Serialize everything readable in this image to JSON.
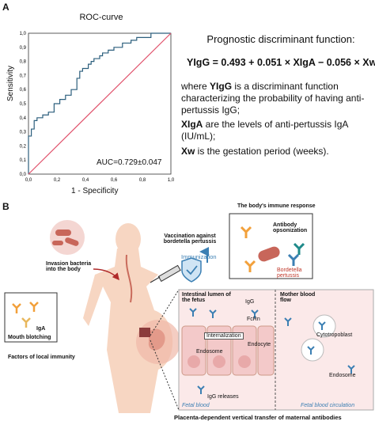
{
  "panel_a": {
    "letter": "A",
    "chart_data": {
      "type": "line",
      "title": "ROC-curve",
      "xlabel": "1 - Specificity",
      "ylabel": "Sensitivity",
      "xlim": [
        0,
        1
      ],
      "ylim": [
        0,
        1
      ],
      "xticks": [
        "0,0",
        "0,2",
        "0,4",
        "0,6",
        "0,8",
        "1,0"
      ],
      "yticks": [
        "0,0",
        "0,1",
        "0,2",
        "0,3",
        "0,4",
        "0,5",
        "0,6",
        "0,7",
        "0,8",
        "0,9",
        "1,0"
      ],
      "annotation": "AUC=0.729±0.047",
      "grid": false,
      "series": [
        {
          "role": "roc",
          "color": "#2c5f7d",
          "x": [
            0,
            0,
            0.02,
            0.02,
            0.04,
            0.04,
            0.06,
            0.06,
            0.1,
            0.1,
            0.14,
            0.14,
            0.18,
            0.18,
            0.22,
            0.22,
            0.26,
            0.26,
            0.3,
            0.3,
            0.34,
            0.34,
            0.36,
            0.36,
            0.38,
            0.38,
            0.42,
            0.42,
            0.44,
            0.44,
            0.46,
            0.46,
            0.5,
            0.5,
            0.52,
            0.52,
            0.56,
            0.56,
            0.6,
            0.6,
            0.66,
            0.66,
            0.72,
            0.72,
            0.76,
            0.76,
            0.86,
            0.86,
            1.0
          ],
          "y": [
            0,
            0.27,
            0.27,
            0.32,
            0.32,
            0.38,
            0.38,
            0.4,
            0.4,
            0.42,
            0.42,
            0.44,
            0.44,
            0.5,
            0.5,
            0.53,
            0.53,
            0.56,
            0.56,
            0.6,
            0.6,
            0.68,
            0.68,
            0.73,
            0.73,
            0.75,
            0.75,
            0.78,
            0.78,
            0.8,
            0.8,
            0.82,
            0.82,
            0.84,
            0.84,
            0.86,
            0.86,
            0.88,
            0.88,
            0.9,
            0.9,
            0.93,
            0.93,
            0.95,
            0.95,
            0.97,
            0.97,
            1.0,
            1.0
          ]
        },
        {
          "role": "reference",
          "color": "#e0506a",
          "x": [
            0,
            1
          ],
          "y": [
            0,
            1
          ]
        }
      ]
    },
    "equation_title": "Prognostic discriminant function:",
    "equation": "YIgG = 0.493 + 0.051 × XIgA − 0.056 × Xw",
    "def1_term": "YIgG",
    "def1_pre": "where ",
    "def1_rest": " is a discriminant function characterizing the probability of having anti-pertussis IgG;",
    "def2_term": "XIgA",
    "def2_rest": " are the levels of anti-pertussis IgA (IU/mL);",
    "def3_term": "Xw",
    "def3_rest": " is the gestation period (weeks)."
  },
  "panel_b": {
    "letter": "B",
    "immune_response": "The body's immune response",
    "antibody_opsonization": "Antibody opsonization",
    "bordetella": "Bordetella pertussis",
    "vaccination": "Vaccination against bordetella pertussis",
    "immunization": "Immunization",
    "invasion": "Invasion bacteria into the body",
    "iga": "IgA",
    "mouth_blotching": "Mouth blotching",
    "factors": "Factors of local immunity",
    "intestinal": "Intestinal lumen of the fetus",
    "igg": "IgG",
    "fcrn": "FcRn",
    "internalization": "Internalization",
    "endocyte": "Endocyte",
    "endosome_left": "Endosome",
    "igg_releases": "IgG releases",
    "fetal_blood": "Fetal blood",
    "mother_blood": "Mother blood flow",
    "cytotropoblast": "Cytotropoblast",
    "endosome_right": "Endosome",
    "fetal_circulation": "Fetal blood circulation",
    "placenta_caption": "Placenta-dependent vertical transfer of maternal antibodies",
    "colors": {
      "roc": "#2c5f7d",
      "ref": "#e0506a",
      "bacteria": "#c8665a",
      "antibody_orange": "#f2a03a",
      "antibody_blue": "#3b7fb3",
      "cell_fill": "#f3c9c9"
    }
  }
}
